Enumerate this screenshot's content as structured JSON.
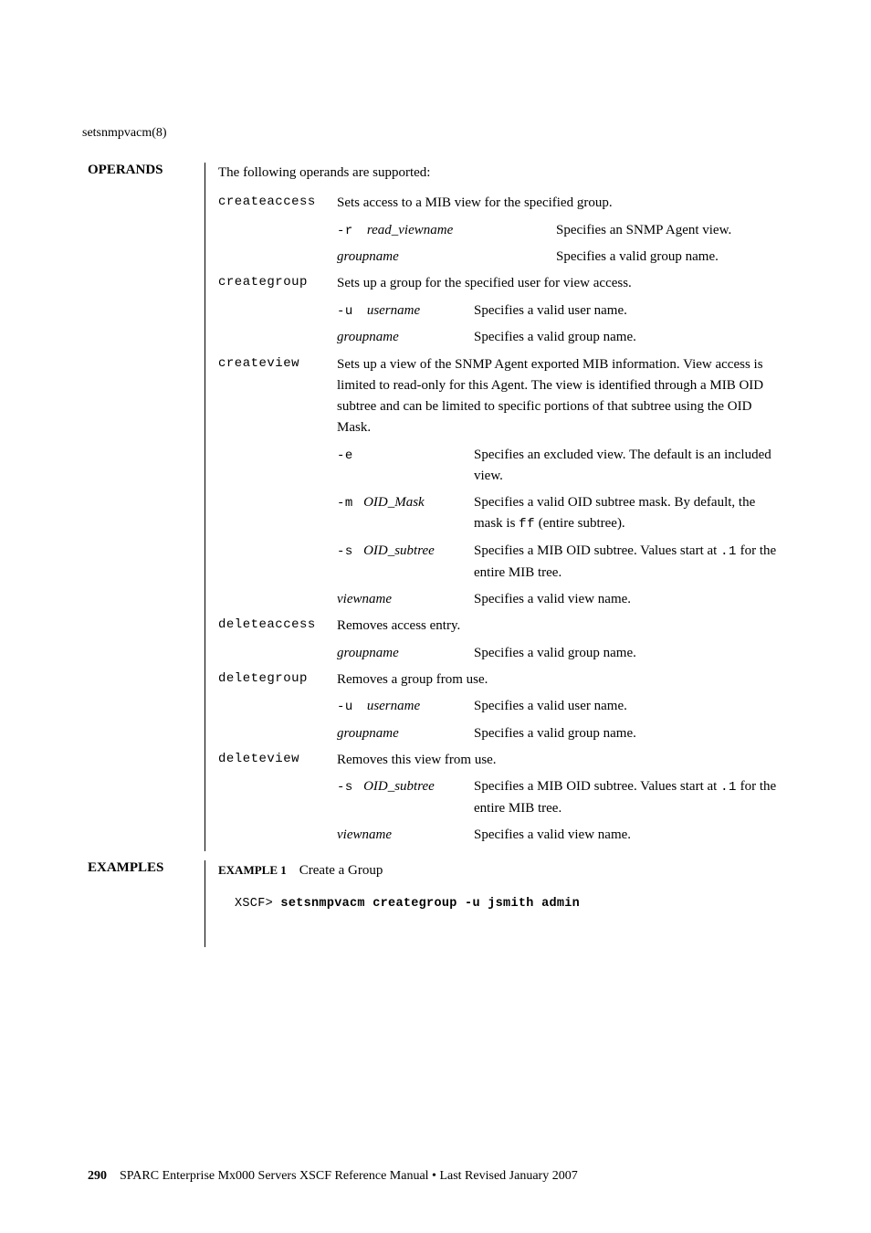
{
  "header": {
    "manpage": "setsnmpvacm(8)"
  },
  "sections": {
    "operands": {
      "label": "OPERANDS",
      "intro": "The following operands are supported:",
      "items": {
        "createaccess": {
          "name": "createaccess",
          "desc": "Sets access to a MIB view for the specified group.",
          "subs": {
            "r": {
              "flag": "-r",
              "arg": "read_viewname",
              "val": "Specifies an SNMP Agent view."
            },
            "groupname": {
              "arg": "groupname",
              "val": "Specifies a valid group name."
            }
          }
        },
        "creategroup": {
          "name": "creategroup",
          "desc": "Sets up a group for the specified user for view access.",
          "subs": {
            "u": {
              "flag": "-u",
              "arg": "username",
              "val": "Specifies a valid user name."
            },
            "groupname": {
              "arg": "groupname",
              "val": "Specifies a valid group name."
            }
          }
        },
        "createview": {
          "name": "createview",
          "desc": "Sets up a view of the SNMP Agent exported MIB information. View access is limited to read-only for this Agent. The view is identified through a MIB OID subtree and can be limited to specific portions of that subtree using the OID Mask.",
          "subs": {
            "e": {
              "flag": "-e",
              "val": "Specifies an excluded view. The default is an included view."
            },
            "m": {
              "flag": "-m",
              "arg": "OID_Mask",
              "val_pre": "Specifies a valid OID subtree mask. By default, the mask is ",
              "val_code": "ff",
              "val_post": " (entire subtree)."
            },
            "s": {
              "flag": "-s",
              "arg": "OID_subtree",
              "val_pre": "Specifies a MIB OID subtree. Values start at ",
              "val_code": ".1",
              "val_post": " for the entire MIB tree."
            },
            "viewname": {
              "arg": "viewname",
              "val": "Specifies a valid view name."
            }
          }
        },
        "deleteaccess": {
          "name": "deleteaccess",
          "desc": "Removes access entry.",
          "subs": {
            "groupname": {
              "arg": "groupname",
              "val": "Specifies a valid group name."
            }
          }
        },
        "deletegroup": {
          "name": "deletegroup",
          "desc": "Removes a group from use.",
          "subs": {
            "u": {
              "flag": "-u",
              "arg": "username",
              "val": "Specifies a valid user name."
            },
            "groupname": {
              "arg": "groupname",
              "val": "Specifies a valid group name."
            }
          }
        },
        "deleteview": {
          "name": "deleteview",
          "desc": "Removes this view from use.",
          "subs": {
            "s": {
              "flag": "-s",
              "arg": "OID_subtree",
              "val_pre": "Specifies a MIB OID subtree. Values start at ",
              "val_code": ".1",
              "val_post": " for the entire MIB tree."
            },
            "viewname": {
              "arg": "viewname",
              "val": "Specifies a valid view name."
            }
          }
        }
      }
    },
    "examples": {
      "label": "EXAMPLES",
      "ex1": {
        "label": "EXAMPLE 1",
        "title": "Create a Group"
      },
      "code": {
        "prompt": "XSCF> ",
        "cmd": "setsnmpvacm creategroup -u jsmith admin"
      }
    }
  },
  "footer": {
    "page": "290",
    "text": "SPARC Enterprise Mx000 Servers XSCF Reference Manual • Last Revised January 2007"
  }
}
